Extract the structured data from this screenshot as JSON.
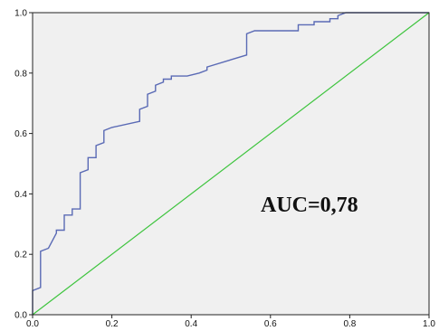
{
  "chart_data": {
    "type": "line",
    "title": "",
    "xlabel": "",
    "ylabel": "",
    "xlim": [
      0,
      1.0
    ],
    "ylim": [
      0,
      1.0
    ],
    "x_ticks": [
      "0.0",
      "0.2",
      "0.4",
      "0.6",
      "0.8",
      "1.0"
    ],
    "y_ticks": [
      "0.0",
      "0.2",
      "0.4",
      "0.6",
      "0.8",
      "1.0"
    ],
    "grid": false,
    "background": "#f0f0f0",
    "series": [
      {
        "color": "#5a6ab5",
        "step": true,
        "x": [
          0.0,
          0.0,
          0.02,
          0.02,
          0.04,
          0.06,
          0.06,
          0.08,
          0.08,
          0.1,
          0.1,
          0.12,
          0.12,
          0.14,
          0.14,
          0.16,
          0.16,
          0.18,
          0.18,
          0.2,
          0.2,
          0.27,
          0.27,
          0.29,
          0.29,
          0.31,
          0.31,
          0.33,
          0.33,
          0.35,
          0.35,
          0.37,
          0.37,
          0.39,
          0.39,
          0.42,
          0.42,
          0.44,
          0.44,
          0.54,
          0.54,
          0.56,
          0.56,
          0.67,
          0.67,
          0.71,
          0.71,
          0.75,
          0.75,
          0.77,
          0.77,
          0.79,
          0.79,
          1.0
        ],
        "y": [
          0.0,
          0.08,
          0.09,
          0.21,
          0.22,
          0.27,
          0.28,
          0.28,
          0.33,
          0.33,
          0.35,
          0.35,
          0.47,
          0.48,
          0.52,
          0.52,
          0.56,
          0.57,
          0.61,
          0.62,
          0.62,
          0.64,
          0.68,
          0.69,
          0.73,
          0.74,
          0.76,
          0.77,
          0.78,
          0.78,
          0.79,
          0.79,
          0.79,
          0.79,
          0.79,
          0.8,
          0.8,
          0.81,
          0.82,
          0.86,
          0.93,
          0.94,
          0.94,
          0.94,
          0.96,
          0.96,
          0.97,
          0.97,
          0.98,
          0.98,
          0.99,
          1.0,
          1.0,
          1.0
        ]
      },
      {
        "color": "#3ec43e",
        "x": [
          0.0,
          1.0
        ],
        "y": [
          0.0,
          1.0
        ]
      }
    ],
    "annotation": "AUC=0,78"
  }
}
